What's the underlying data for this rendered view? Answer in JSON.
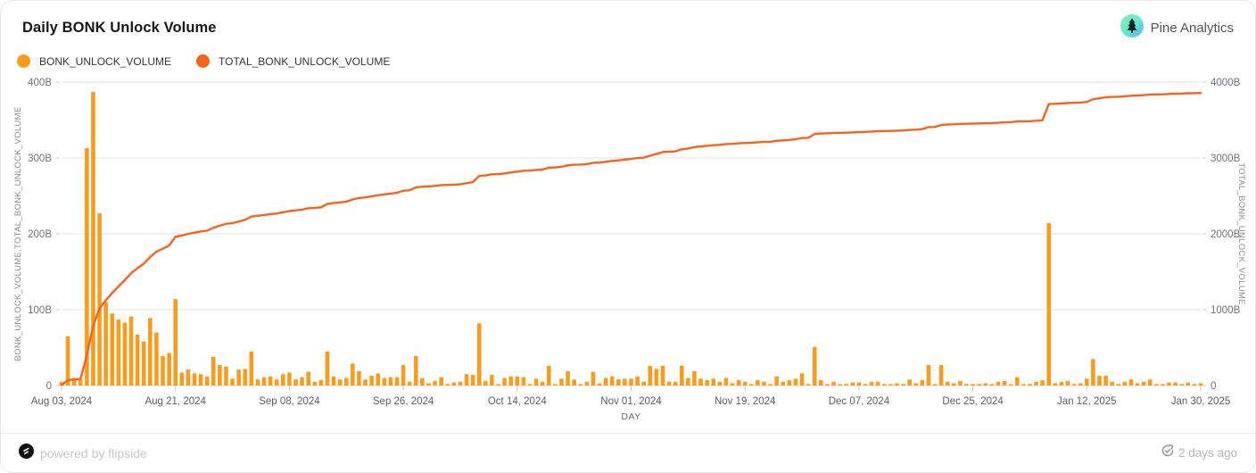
{
  "header": {
    "title": "Daily BONK Unlock Volume",
    "brand": "Pine Analytics"
  },
  "legend": [
    {
      "label": "BONK_UNLOCK_VOLUME",
      "color": "#f99c1d"
    },
    {
      "label": "TOTAL_BONK_UNLOCK_VOLUME",
      "color": "#f4641d"
    }
  ],
  "footer": {
    "powered_by": "powered by flipside",
    "updated": "2 days ago"
  },
  "chart_data": {
    "type": "combo",
    "title": "Daily BONK Unlock Volume",
    "xlabel": "DAY",
    "start_date": "2024-08-03",
    "end_date": "2025-01-30",
    "x_tick_labels": [
      "Aug 03, 2024",
      "Aug 21, 2024",
      "Sep 08, 2024",
      "Sep 26, 2024",
      "Oct 14, 2024",
      "Nov 01, 2024",
      "Nov 19, 2024",
      "Dec 07, 2024",
      "Dec 25, 2024",
      "Jan 12, 2025",
      "Jan 30, 2025"
    ],
    "x_tick_interval_days": 18,
    "grid": true,
    "left_axis": {
      "label": "BONK_UNLOCK_VOLUME,TOTAL_BONK_UNLOCK_VOLUME",
      "ticks": [
        "0",
        "100B",
        "200B",
        "300B",
        "400B"
      ],
      "max_billions": 400
    },
    "right_axis": {
      "label": "TOTAL_BONK_UNLOCK_VOLUME",
      "ticks": [
        "0",
        "1000B",
        "2000B",
        "3000B",
        "4000B"
      ],
      "max_billions": 4000
    },
    "series": [
      {
        "name": "BONK_UNLOCK_VOLUME",
        "type": "bar",
        "axis": "left",
        "color": "#f99c1d",
        "unit": "billions",
        "values": [
          5,
          65,
          10,
          8,
          313,
          387,
          227,
          110,
          95,
          87,
          83,
          91,
          67,
          58,
          89,
          70,
          39,
          43,
          114,
          17,
          21,
          16,
          15,
          12,
          38,
          27,
          25,
          9,
          21,
          22,
          45,
          8,
          11,
          12,
          8,
          15,
          17,
          8,
          11,
          18,
          5,
          7,
          45,
          12,
          8,
          10,
          29,
          19,
          8,
          13,
          16,
          10,
          11,
          11,
          27,
          5,
          39,
          10,
          3,
          6,
          11,
          2,
          4,
          5,
          15,
          14,
          82,
          6,
          14,
          2,
          10,
          12,
          12,
          11,
          2,
          9,
          5,
          26,
          2,
          9,
          19,
          8,
          2,
          5,
          18,
          3,
          10,
          12,
          8,
          9,
          9,
          12,
          5,
          26,
          22,
          26,
          5,
          5,
          26,
          10,
          19,
          9,
          7,
          9,
          5,
          10,
          3,
          7,
          5,
          2,
          7,
          5,
          2,
          12,
          5,
          7,
          9,
          16,
          2,
          51,
          7,
          2,
          5,
          1,
          2,
          4,
          4,
          2,
          5,
          5,
          2,
          2,
          3,
          2,
          8,
          3,
          7,
          27,
          1,
          27,
          5,
          3,
          6,
          2,
          2,
          2,
          3,
          1,
          5,
          6,
          1,
          11,
          1,
          2,
          5,
          7,
          214,
          3,
          5,
          6,
          2,
          3,
          9,
          35,
          13,
          13,
          5,
          2,
          5,
          8,
          3,
          5,
          8,
          1,
          2,
          4,
          4,
          2,
          4,
          1,
          3
        ]
      },
      {
        "name": "TOTAL_BONK_UNLOCK_VOLUME",
        "type": "line",
        "axis": "right",
        "color": "#f4641d",
        "unit": "billions",
        "derived": "cumulative_of_series_0"
      }
    ]
  }
}
